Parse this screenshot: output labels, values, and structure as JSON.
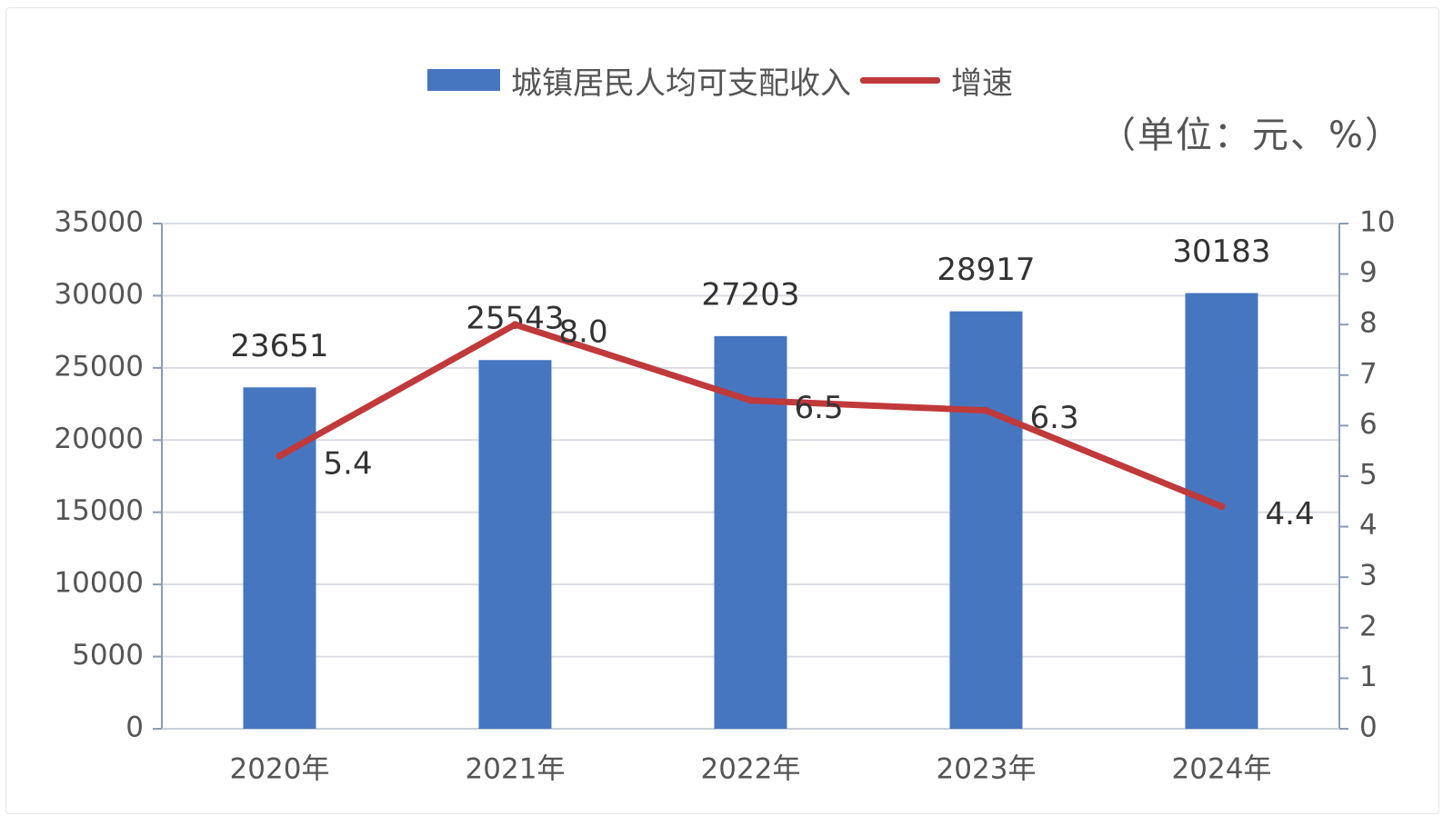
{
  "chart_data": {
    "type": "bar",
    "categories": [
      "2020年",
      "2021年",
      "2022年",
      "2023年",
      "2024年"
    ],
    "series": [
      {
        "name": "城镇居民人均可支配收入",
        "type": "bar",
        "axis": "left",
        "color": "#4676c0",
        "values": [
          23651,
          25543,
          27203,
          28917,
          30183
        ]
      },
      {
        "name": "增速",
        "type": "line",
        "axis": "right",
        "color": "#c0393b",
        "values": [
          5.4,
          8.0,
          6.5,
          6.3,
          4.4
        ]
      }
    ],
    "bar_labels": [
      "23651",
      "25543",
      "27203",
      "28917",
      "30183"
    ],
    "line_labels": [
      "5.4",
      "8.0",
      "6.5",
      "6.3",
      "4.4"
    ],
    "unit_note": "（单位：元、%）",
    "y_left": {
      "ylim": [
        0,
        35000
      ],
      "ticks": [
        "0",
        "5000",
        "10000",
        "15000",
        "20000",
        "25000",
        "30000",
        "35000"
      ]
    },
    "y_right": {
      "ylim": [
        0,
        10
      ],
      "ticks": [
        "0",
        "1",
        "2",
        "3",
        "4",
        "5",
        "6",
        "7",
        "8",
        "9",
        "10"
      ]
    },
    "legend_position": "top-center",
    "grid": true
  }
}
